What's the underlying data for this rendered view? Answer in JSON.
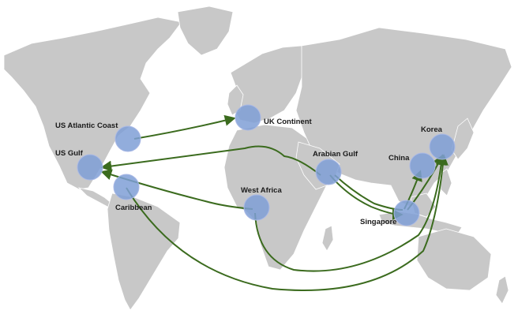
{
  "regions": {
    "us_atlantic": "US Atlantic Coast",
    "uk": "UK Continent",
    "us_gulf": "US Gulf",
    "caribbean": "Caribbean",
    "west_africa": "West Africa",
    "arabian": "Arabian Gulf",
    "china": "China",
    "korea": "Korea",
    "singapore": "Singapore"
  },
  "colors": {
    "land": "#c8c8c8",
    "node": "#7f9fd6",
    "route": "#3b6b1e",
    "background": "#ffffff"
  }
}
